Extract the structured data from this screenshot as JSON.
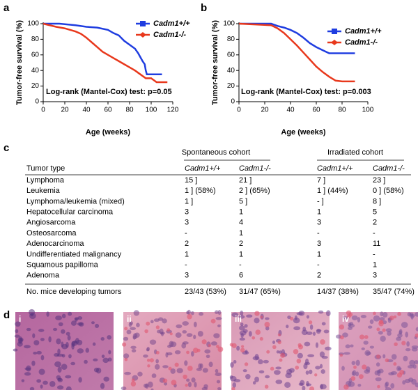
{
  "chart_data": [
    {
      "type": "line",
      "x_label": "Age (weeks)",
      "y_label": "Tumor-free survival (%)",
      "annotation": "Log-rank (Mantel-Cox) test: p=0.05",
      "xlim": [
        0,
        120
      ],
      "xticks": [
        0,
        20,
        40,
        60,
        80,
        100,
        120
      ],
      "ylim": [
        0,
        100
      ],
      "yticks": [
        0,
        20,
        40,
        60,
        80,
        100
      ],
      "series": [
        {
          "name": "Cadm1+/+",
          "color": "#1f3de0",
          "x": [
            0,
            15,
            30,
            40,
            50,
            60,
            65,
            70,
            75,
            80,
            85,
            88,
            90,
            92,
            94,
            95,
            96,
            97,
            100,
            105,
            110
          ],
          "values": [
            100,
            100,
            98,
            96,
            95,
            92,
            88,
            85,
            78,
            73,
            68,
            62,
            57,
            52,
            48,
            40,
            35,
            35,
            35,
            35,
            35
          ]
        },
        {
          "name": "Cadm1-/-",
          "color": "#e8381c",
          "x": [
            0,
            12,
            20,
            25,
            30,
            35,
            40,
            45,
            50,
            55,
            60,
            65,
            70,
            75,
            80,
            85,
            90,
            95,
            100,
            105,
            110,
            115
          ],
          "values": [
            100,
            96,
            94,
            92,
            90,
            87,
            82,
            76,
            70,
            64,
            60,
            56,
            52,
            48,
            44,
            40,
            35,
            30,
            30,
            25,
            25,
            25
          ]
        }
      ]
    },
    {
      "type": "line",
      "x_label": "Age (weeks)",
      "y_label": "Tumor-free survival (%)",
      "annotation": "Log-rank (Mantel-Cox) test: p=0.003",
      "xlim": [
        0,
        100
      ],
      "xticks": [
        0,
        20,
        40,
        60,
        80,
        100
      ],
      "ylim": [
        0,
        100
      ],
      "yticks": [
        0,
        20,
        40,
        60,
        80,
        100
      ],
      "series": [
        {
          "name": "Cadm1+/+",
          "color": "#1f3de0",
          "x": [
            0,
            25,
            30,
            35,
            40,
            45,
            50,
            55,
            60,
            65,
            70,
            75,
            80,
            85,
            90
          ],
          "values": [
            100,
            100,
            97,
            95,
            92,
            88,
            82,
            75,
            70,
            66,
            62,
            62,
            62,
            62,
            62
          ]
        },
        {
          "name": "Cadm1-/-",
          "color": "#e8381c",
          "x": [
            0,
            25,
            30,
            35,
            40,
            45,
            50,
            55,
            60,
            65,
            70,
            75,
            80,
            85,
            90
          ],
          "values": [
            100,
            98,
            94,
            88,
            80,
            72,
            63,
            54,
            45,
            38,
            32,
            27,
            26,
            26,
            26
          ]
        }
      ]
    }
  ],
  "panel_labels": [
    "a",
    "b",
    "c",
    "d"
  ],
  "table": {
    "groups": [
      "Spontaneous cohort",
      "Irradiated cohort"
    ],
    "header": [
      "Tumor type",
      "Cadm1+/+",
      "Cadm1-/-",
      "Cadm1+/+",
      "Cadm1-/-"
    ],
    "rows": [
      [
        "Lymphoma",
        "15 ]",
        "21 ]",
        "7 ]",
        "23 ]"
      ],
      [
        "Leukemia",
        "1 ] (58%)",
        "2 ] (65%)",
        "1 ] (44%)",
        "0 ] (58%)"
      ],
      [
        "Lymphoma/leukemia (mixed)",
        "1 ]",
        "5 ]",
        "- ]",
        "8 ]"
      ],
      [
        "Hepatocellular carcinoma",
        "3",
        "1",
        "1",
        "5"
      ],
      [
        "Angiosarcoma",
        "3",
        "4",
        "3",
        "2"
      ],
      [
        "Osteosarcoma",
        "-",
        "1",
        "-",
        "-"
      ],
      [
        "Adenocarcinoma",
        "2",
        "2",
        "3",
        "11"
      ],
      [
        "Undifferentiated malignancy",
        "1",
        "1",
        "1",
        "-"
      ],
      [
        "Squamous papilloma",
        "-",
        "-",
        "-",
        "1"
      ],
      [
        "Adenoma",
        "3",
        "6",
        "2",
        "3"
      ]
    ],
    "footer": [
      "No. mice developing tumors",
      "23/43 (53%)",
      "31/47 (65%)",
      "14/37 (38%)",
      "35/47 (74%)"
    ]
  },
  "histology": {
    "labels": [
      "i",
      "ii",
      "iii",
      "iv"
    ]
  }
}
